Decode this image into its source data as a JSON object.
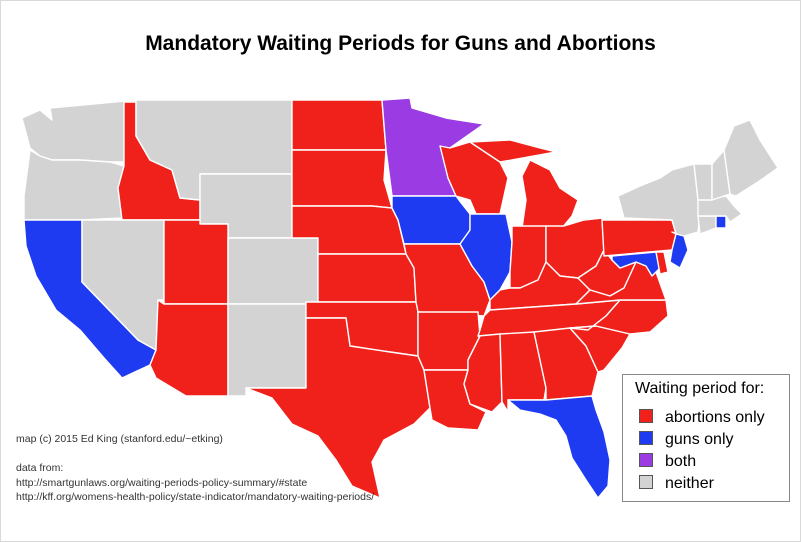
{
  "title": "Mandatory Waiting Periods for Guns and Abortions",
  "colors": {
    "abortions": "#f0201a",
    "guns": "#1f3bf2",
    "both": "#9b3be3",
    "neither": "#d3d3d3",
    "border": "#ffffff"
  },
  "legend": {
    "title": "Waiting period for:",
    "items": [
      {
        "key": "abortions",
        "label": "abortions only"
      },
      {
        "key": "guns",
        "label": "guns only"
      },
      {
        "key": "both",
        "label": "both"
      },
      {
        "key": "neither",
        "label": "neither"
      }
    ]
  },
  "credit": {
    "map": "map (c) 2015 Ed King (stanford.edu/~etking)",
    "data_label": "data from:",
    "source1": "http://smartgunlaws.org/waiting-periods-policy-summary/#state",
    "source2": "http://kff.org/womens-health-policy/state-indicator/mandatory-waiting-periods/"
  },
  "states": [
    {
      "name": "Washington",
      "category": "neither"
    },
    {
      "name": "Oregon",
      "category": "neither"
    },
    {
      "name": "California",
      "category": "guns"
    },
    {
      "name": "Idaho",
      "category": "abortions"
    },
    {
      "name": "Nevada",
      "category": "neither"
    },
    {
      "name": "Montana",
      "category": "neither"
    },
    {
      "name": "Wyoming",
      "category": "neither"
    },
    {
      "name": "Utah",
      "category": "abortions"
    },
    {
      "name": "Arizona",
      "category": "abortions"
    },
    {
      "name": "Colorado",
      "category": "neither"
    },
    {
      "name": "New Mexico",
      "category": "neither"
    },
    {
      "name": "North Dakota",
      "category": "abortions"
    },
    {
      "name": "South Dakota",
      "category": "abortions"
    },
    {
      "name": "Nebraska",
      "category": "abortions"
    },
    {
      "name": "Kansas",
      "category": "abortions"
    },
    {
      "name": "Oklahoma",
      "category": "abortions"
    },
    {
      "name": "Texas",
      "category": "abortions"
    },
    {
      "name": "Minnesota",
      "category": "both"
    },
    {
      "name": "Iowa",
      "category": "guns"
    },
    {
      "name": "Missouri",
      "category": "abortions"
    },
    {
      "name": "Arkansas",
      "category": "abortions"
    },
    {
      "name": "Louisiana",
      "category": "abortions"
    },
    {
      "name": "Wisconsin",
      "category": "abortions"
    },
    {
      "name": "Illinois",
      "category": "guns"
    },
    {
      "name": "Michigan",
      "category": "abortions"
    },
    {
      "name": "Indiana",
      "category": "abortions"
    },
    {
      "name": "Ohio",
      "category": "abortions"
    },
    {
      "name": "Kentucky",
      "category": "abortions"
    },
    {
      "name": "Tennessee",
      "category": "abortions"
    },
    {
      "name": "Mississippi",
      "category": "abortions"
    },
    {
      "name": "Alabama",
      "category": "abortions"
    },
    {
      "name": "Georgia",
      "category": "abortions"
    },
    {
      "name": "Florida",
      "category": "guns"
    },
    {
      "name": "South Carolina",
      "category": "abortions"
    },
    {
      "name": "North Carolina",
      "category": "abortions"
    },
    {
      "name": "Virginia",
      "category": "abortions"
    },
    {
      "name": "West Virginia",
      "category": "abortions"
    },
    {
      "name": "Maryland",
      "category": "guns"
    },
    {
      "name": "Delaware",
      "category": "abortions"
    },
    {
      "name": "Pennsylvania",
      "category": "abortions"
    },
    {
      "name": "New Jersey",
      "category": "guns"
    },
    {
      "name": "New York",
      "category": "neither"
    },
    {
      "name": "Connecticut",
      "category": "neither"
    },
    {
      "name": "Rhode Island",
      "category": "guns"
    },
    {
      "name": "Massachusetts",
      "category": "neither"
    },
    {
      "name": "Vermont",
      "category": "neither"
    },
    {
      "name": "New Hampshire",
      "category": "neither"
    },
    {
      "name": "Maine",
      "category": "neither"
    }
  ]
}
